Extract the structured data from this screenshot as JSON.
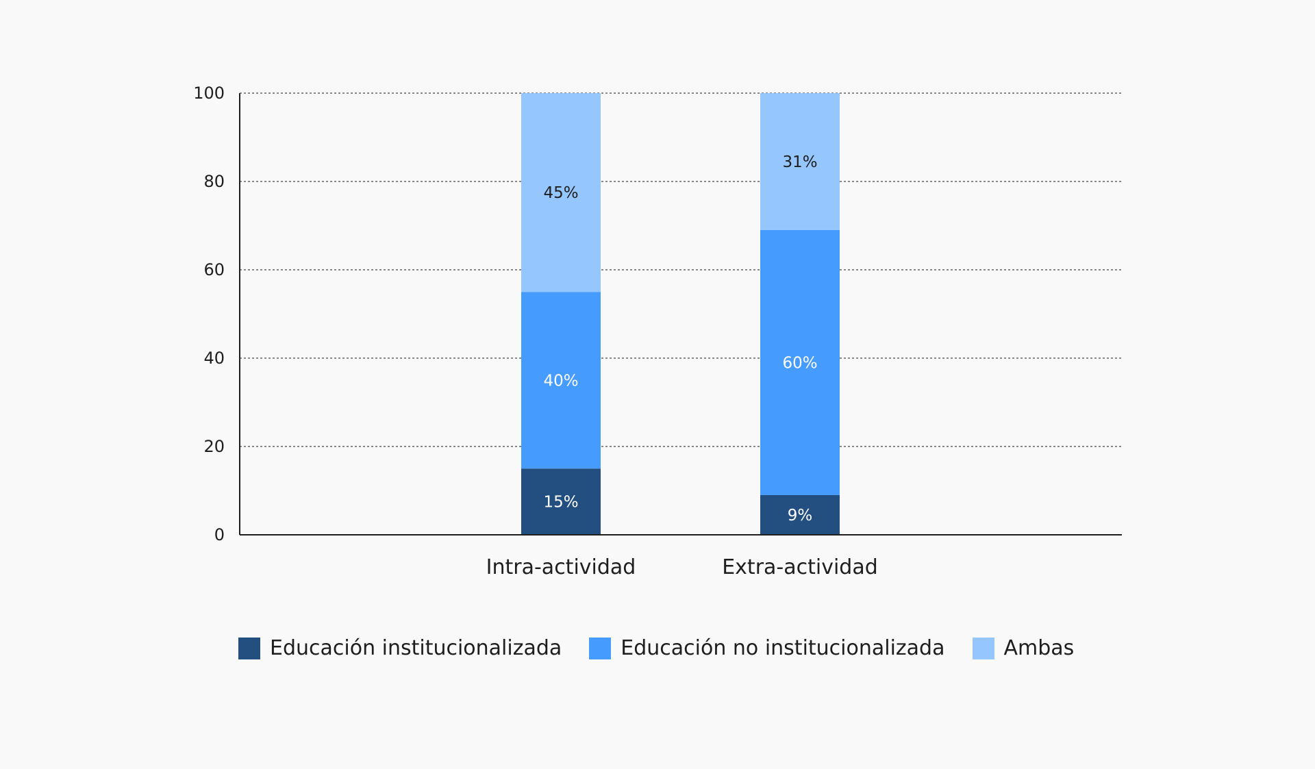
{
  "chart_data": {
    "type": "bar",
    "stacked": true,
    "categories": [
      "Intra-actividad",
      "Extra-actividad"
    ],
    "series": [
      {
        "name": "Educación institucionalizada",
        "values": [
          15,
          9
        ],
        "labels": [
          "15%",
          "9%"
        ],
        "color": "#224e80",
        "label_color": "#ffffff"
      },
      {
        "name": "Educación no institucionalizada",
        "values": [
          40,
          60
        ],
        "labels": [
          "40%",
          "60%"
        ],
        "color": "#459cfe",
        "label_color": "#ffffff"
      },
      {
        "name": "Ambas",
        "values": [
          45,
          31
        ],
        "labels": [
          "45%",
          "31%"
        ],
        "color": "#95c6fe",
        "label_color": "#1e1e1e"
      }
    ],
    "y_ticks": [
      "0",
      "20",
      "40",
      "60",
      "80",
      "100"
    ],
    "ylim": [
      0,
      100
    ],
    "grid": true,
    "grid_style": "dotted",
    "legend_position": "bottom-left",
    "title": "",
    "xlabel": "",
    "ylabel": ""
  }
}
